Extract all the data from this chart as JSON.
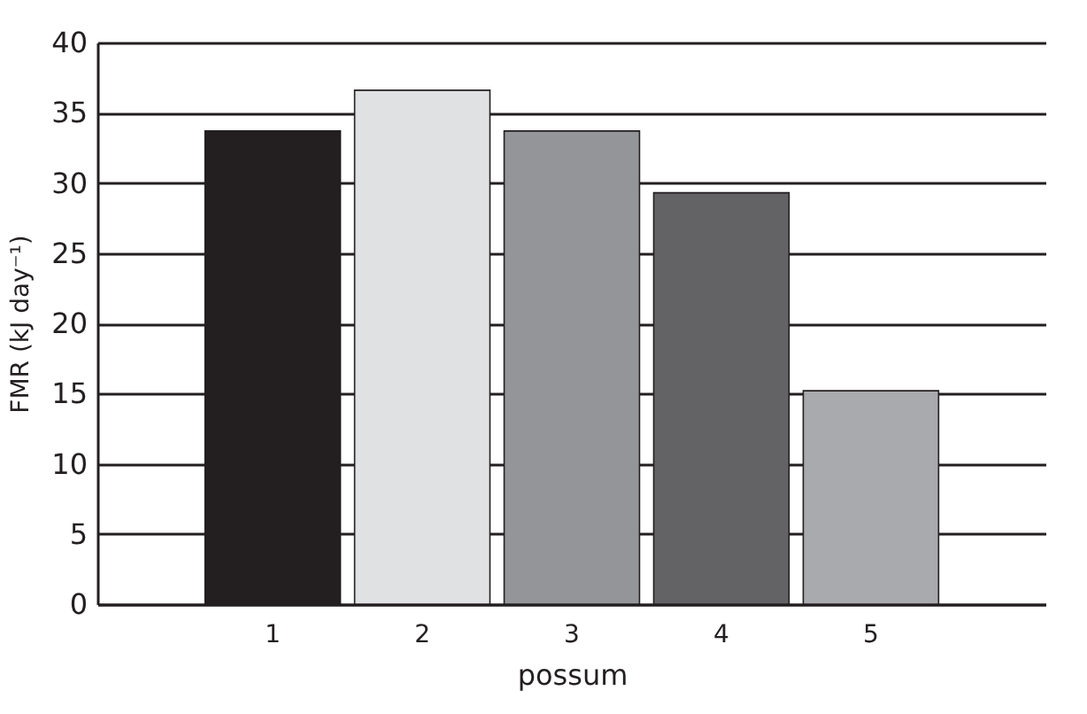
{
  "chart_data": {
    "type": "bar",
    "xlabel": "possum",
    "ylabel": "FMR (kJ day⁻¹)",
    "categories": [
      "1",
      "2",
      "3",
      "4",
      "5"
    ],
    "values": [
      33.7,
      36.6,
      33.7,
      29.3,
      15.2
    ],
    "colors": [
      "#231f20",
      "#e0e1e3",
      "#939598",
      "#636365",
      "#a9aaad"
    ],
    "ylim": [
      0,
      40
    ],
    "yticks": [
      0,
      5,
      10,
      15,
      20,
      25,
      30,
      35,
      40
    ],
    "grid": "y"
  }
}
